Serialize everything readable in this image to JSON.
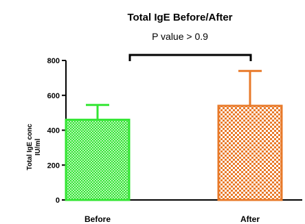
{
  "chart_data": {
    "type": "bar",
    "title": "Total IgE Before/After",
    "subtitle": "P value > 0.9",
    "ylabel_lines": [
      "Total IgE conc",
      "IU/ml"
    ],
    "xlabel": "",
    "categories": [
      "Before",
      "After"
    ],
    "values": [
      460,
      540
    ],
    "error_upper": [
      545,
      740
    ],
    "ylim": [
      0,
      800
    ],
    "yticks": [
      0,
      200,
      400,
      600,
      800
    ],
    "colors": [
      "#33e633",
      "#e87a2a"
    ],
    "patterns": [
      "fine-dots",
      "checker"
    ],
    "significance_bracket": {
      "from": "Before",
      "to": "After"
    },
    "grid": false,
    "legend": "none"
  }
}
